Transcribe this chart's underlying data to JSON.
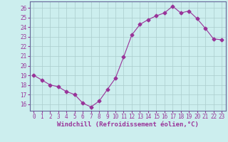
{
  "x": [
    0,
    1,
    2,
    3,
    4,
    5,
    6,
    7,
    8,
    9,
    10,
    11,
    12,
    13,
    14,
    15,
    16,
    17,
    18,
    19,
    20,
    21,
    22,
    23
  ],
  "y": [
    19,
    18.5,
    18,
    17.8,
    17.3,
    17,
    16.1,
    15.7,
    16.3,
    17.5,
    18.7,
    20.9,
    23.2,
    24.3,
    24.8,
    25.2,
    25.5,
    26.2,
    25.5,
    25.7,
    24.9,
    23.9,
    22.8,
    22.7
  ],
  "line_color": "#993399",
  "marker": "D",
  "markersize": 2.5,
  "bg_color": "#cceeee",
  "grid_color": "#aacccc",
  "xlabel": "Windchill (Refroidissement éolien,°C)",
  "ylabel_ticks": [
    16,
    17,
    18,
    19,
    20,
    21,
    22,
    23,
    24,
    25,
    26
  ],
  "ylim": [
    15.3,
    26.7
  ],
  "xlim": [
    -0.5,
    23.5
  ],
  "tick_color": "#993399",
  "label_fontsize": 6.5,
  "tick_fontsize": 5.5
}
